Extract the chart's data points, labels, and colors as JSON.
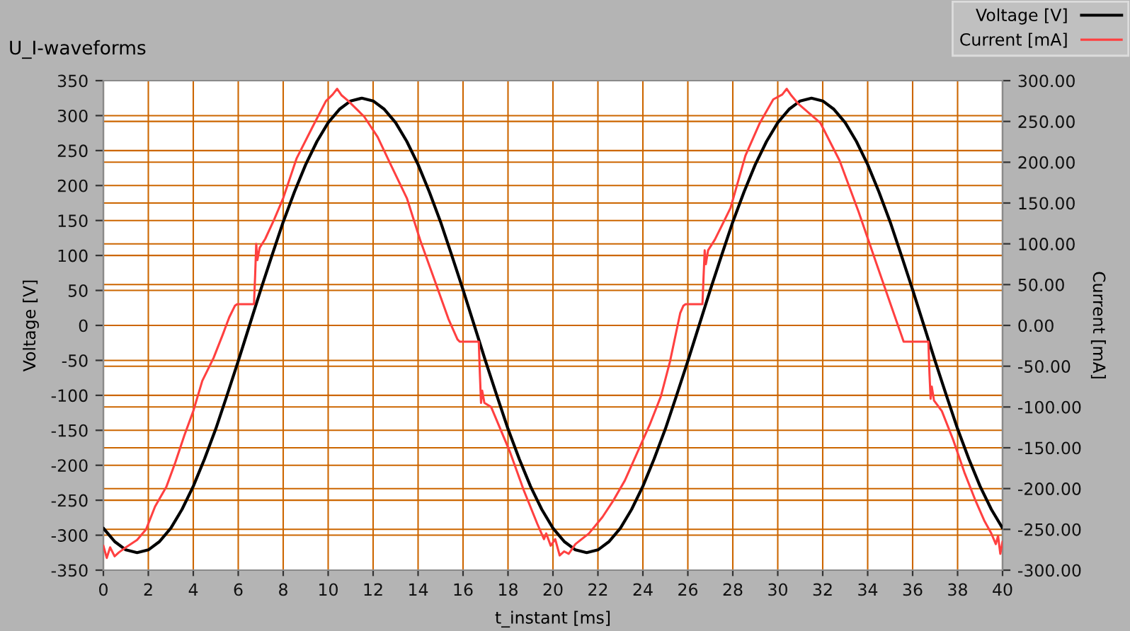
{
  "chart_data": {
    "type": "line",
    "title": "U_I-waveforms",
    "xlabel": "t_instant [ms]",
    "ylabel": "Voltage [V]",
    "y2label": "Current [mA]",
    "xlim": [
      0,
      40
    ],
    "xticks": [
      0,
      2,
      4,
      6,
      8,
      10,
      12,
      14,
      16,
      18,
      20,
      22,
      24,
      26,
      28,
      30,
      32,
      34,
      36,
      38,
      40
    ],
    "ylim": [
      -350,
      350
    ],
    "yticks": [
      -350,
      -300,
      -250,
      -200,
      -150,
      -100,
      -50,
      0,
      50,
      100,
      150,
      200,
      250,
      300,
      350
    ],
    "y2lim": [
      -300,
      300
    ],
    "y2ticks": [
      {
        "value": -300,
        "label": "-300.00"
      },
      {
        "value": -250,
        "label": "-250.00"
      },
      {
        "value": -200,
        "label": "-200.00"
      },
      {
        "value": -150,
        "label": "-150.00"
      },
      {
        "value": -100,
        "label": "-100.00"
      },
      {
        "value": -50,
        "label": "-50.00"
      },
      {
        "value": 0,
        "label": "0.00"
      },
      {
        "value": 50,
        "label": "50.00"
      },
      {
        "value": 100,
        "label": "100.00"
      },
      {
        "value": 150,
        "label": "150.00"
      },
      {
        "value": 200,
        "label": "200.00"
      },
      {
        "value": 250,
        "label": "250.00"
      },
      {
        "value": 300,
        "label": "300.00"
      }
    ],
    "grid": true,
    "legend": "top right",
    "series": [
      {
        "name": "Voltage [V]",
        "color": "#000000",
        "x": [
          0,
          0.5,
          1,
          1.5,
          2,
          2.5,
          3,
          3.5,
          4,
          4.5,
          5,
          5.5,
          6,
          6.5,
          7,
          7.5,
          8,
          8.5,
          9,
          9.5,
          10,
          10.5,
          11,
          11.5,
          12,
          12.5,
          13,
          13.5,
          14,
          14.5,
          15,
          15.5,
          16,
          16.5,
          17,
          17.5,
          18,
          18.5,
          19,
          19.5,
          20,
          20.5,
          21,
          21.5,
          22,
          22.5,
          23,
          23.5,
          24,
          24.5,
          25,
          25.5,
          26,
          26.5,
          27,
          27.5,
          28,
          28.5,
          29,
          29.5,
          30,
          30.5,
          31,
          31.5,
          32,
          32.5,
          33,
          33.5,
          34,
          34.5,
          35,
          35.5,
          36,
          36.5,
          37,
          37.5,
          38,
          38.5,
          39,
          39.5,
          40
        ],
        "values": [
          -290,
          -309,
          -321,
          -325,
          -321,
          -309,
          -290,
          -263,
          -230,
          -191,
          -148,
          -100,
          -51,
          0,
          51,
          100,
          148,
          191,
          230,
          263,
          290,
          309,
          321,
          325,
          321,
          309,
          290,
          263,
          230,
          191,
          148,
          100,
          51,
          0,
          -51,
          -100,
          -148,
          -191,
          -230,
          -263,
          -290,
          -309,
          -321,
          -325,
          -321,
          -309,
          -290,
          -263,
          -230,
          -191,
          -148,
          -100,
          -51,
          0,
          51,
          100,
          148,
          191,
          230,
          263,
          290,
          309,
          321,
          325,
          321,
          309,
          290,
          263,
          230,
          191,
          148,
          100,
          51,
          0,
          -51,
          -100,
          -148,
          -191,
          -230,
          -263,
          -290
        ]
      },
      {
        "name": "Current [mA]",
        "color": "#ff4040",
        "axis": "y2",
        "x": [
          0,
          0.15,
          0.3,
          0.5,
          0.7,
          1.0,
          1.5,
          1.9,
          2.3,
          2.8,
          3.2,
          3.6,
          4.0,
          4.4,
          4.9,
          5.3,
          5.6,
          5.85,
          5.95,
          6.7,
          6.75,
          6.8,
          6.85,
          6.95,
          7.2,
          7.6,
          8.0,
          8.6,
          9.3,
          9.9,
          10.2,
          10.4,
          10.6,
          10.9,
          11.6,
          12.2,
          12.8,
          13.5,
          14.1,
          14.7,
          15.35,
          15.75,
          15.85,
          16.7,
          16.75,
          16.8,
          16.85,
          16.95,
          17.25,
          18.1,
          18.7,
          19.3,
          19.6,
          19.7,
          19.9,
          20.1,
          20.3,
          20.5,
          20.7,
          21.0,
          21.6,
          22.2,
          22.7,
          23.2,
          23.75,
          24.3,
          24.8,
          25.2,
          25.66,
          25.8,
          25.9,
          26.65,
          26.7,
          26.75,
          26.8,
          26.9,
          27.2,
          27.9,
          28.56,
          29.2,
          29.8,
          30.2,
          30.4,
          30.6,
          30.9,
          31.9,
          32.75,
          33.6,
          34.4,
          35.27,
          35.5,
          35.6,
          36.7,
          36.75,
          36.8,
          36.85,
          36.95,
          37.3,
          37.8,
          38.3,
          38.8,
          39.2,
          39.5,
          39.7,
          39.8,
          39.9,
          40.0
        ],
        "values": [
          -270,
          -285,
          -272,
          -283,
          -278,
          -272,
          -263,
          -250,
          -222,
          -198,
          -168,
          -135,
          -105,
          -68,
          -40,
          -12,
          10,
          24,
          26,
          26,
          60,
          100,
          80,
          95,
          106,
          130,
          156,
          205,
          243,
          275,
          283,
          290,
          282,
          275,
          256,
          231,
          196,
          156,
          104,
          58,
          8,
          -17,
          -20,
          -20,
          -60,
          -95,
          -80,
          -95,
          -100,
          -156,
          -202,
          -243,
          -262,
          -255,
          -270,
          -262,
          -282,
          -277,
          -280,
          -268,
          -255,
          -235,
          -214,
          -190,
          -156,
          -122,
          -87,
          -45,
          15,
          24,
          26,
          26,
          60,
          92,
          75,
          92,
          105,
          144,
          208,
          248,
          277,
          283,
          290,
          282,
          272,
          248,
          202,
          139,
          75,
          6,
          -12,
          -20,
          -20,
          -60,
          -90,
          -75,
          -92,
          -105,
          -140,
          -180,
          -215,
          -240,
          -255,
          -268,
          -258,
          -280,
          -265
        ]
      }
    ]
  }
}
